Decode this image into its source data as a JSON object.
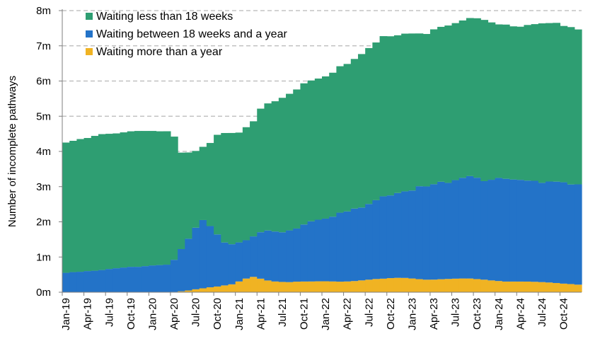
{
  "chart_data": {
    "type": "area",
    "stacked": true,
    "title": "",
    "xlabel": "",
    "ylabel": "Number of incomplete pathways",
    "ylim": [
      0,
      8000000
    ],
    "y_ticks": [
      {
        "value": 0,
        "label": "0m"
      },
      {
        "value": 1000000,
        "label": "1m"
      },
      {
        "value": 2000000,
        "label": "2m"
      },
      {
        "value": 3000000,
        "label": "3m"
      },
      {
        "value": 4000000,
        "label": "4m"
      },
      {
        "value": 5000000,
        "label": "5m"
      },
      {
        "value": 6000000,
        "label": "6m"
      },
      {
        "value": 7000000,
        "label": "7m"
      },
      {
        "value": 8000000,
        "label": "8m"
      }
    ],
    "grid": "horizontal dashed",
    "legend_position": "top-left",
    "x_tick_labels": [
      "Jan-19",
      "Apr-19",
      "Jul-19",
      "Oct-19",
      "Jan-20",
      "Apr-20",
      "Jul-20",
      "Oct-20",
      "Jan-21",
      "Apr-21",
      "Jul-21",
      "Oct-21",
      "Jan-22",
      "Apr-22",
      "Jul-22",
      "Oct-22",
      "Jan-23",
      "Apr-23",
      "Jul-23",
      "Oct-23",
      "Jan-24",
      "Apr-24",
      "Jul-24",
      "Oct-24"
    ],
    "x": [
      "Jan-19",
      "Feb-19",
      "Mar-19",
      "Apr-19",
      "May-19",
      "Jun-19",
      "Jul-19",
      "Aug-19",
      "Sep-19",
      "Oct-19",
      "Nov-19",
      "Dec-19",
      "Jan-20",
      "Feb-20",
      "Mar-20",
      "Apr-20",
      "May-20",
      "Jun-20",
      "Jul-20",
      "Aug-20",
      "Sep-20",
      "Oct-20",
      "Nov-20",
      "Dec-20",
      "Jan-21",
      "Feb-21",
      "Mar-21",
      "Apr-21",
      "May-21",
      "Jun-21",
      "Jul-21",
      "Aug-21",
      "Sep-21",
      "Oct-21",
      "Nov-21",
      "Dec-21",
      "Jan-22",
      "Feb-22",
      "Mar-22",
      "Apr-22",
      "May-22",
      "Jun-22",
      "Jul-22",
      "Aug-22",
      "Sep-22",
      "Oct-22",
      "Nov-22",
      "Dec-22",
      "Jan-23",
      "Feb-23",
      "Mar-23",
      "Apr-23",
      "May-23",
      "Jun-23",
      "Jul-23",
      "Aug-23",
      "Sep-23",
      "Oct-23",
      "Nov-23",
      "Dec-23",
      "Jan-24",
      "Feb-24",
      "Mar-24",
      "Apr-24",
      "May-24",
      "Jun-24",
      "Jul-24",
      "Aug-24",
      "Sep-24",
      "Oct-24",
      "Nov-24",
      "Dec-24"
    ],
    "totals_note_units": "pathways",
    "series": [
      {
        "name": "Waiting more than a year",
        "color": "#F0B323",
        "values": [
          1600,
          1600,
          1500,
          1500,
          1400,
          1400,
          1400,
          1500,
          1500,
          1500,
          1500,
          1600,
          1600,
          1600,
          3000,
          11000,
          26000,
          50000,
          83000,
          111000,
          140000,
          162000,
          193000,
          224000,
          305000,
          388000,
          436000,
          385000,
          334000,
          305000,
          293000,
          287000,
          300000,
          304000,
          305000,
          310000,
          311000,
          306000,
          300000,
          305000,
          317000,
          336000,
          356000,
          375000,
          385000,
          401000,
          409000,
          406000,
          390000,
          371000,
          356000,
          358000,
          369000,
          377000,
          385000,
          390000,
          389000,
          373000,
          356000,
          335000,
          318000,
          303000,
          303000,
          303000,
          302000,
          296000,
          288000,
          276000,
          262000,
          244000,
          232000,
          215000
        ]
      },
      {
        "name": "Waiting between 18 weeks and a year",
        "color": "#2373C8",
        "values": [
          550000,
          570000,
          580000,
          600000,
          610000,
          630000,
          660000,
          680000,
          700000,
          720000,
          720000,
          740000,
          760000,
          770000,
          780000,
          910000,
          1200000,
          1470000,
          1750000,
          1940000,
          1740000,
          1480000,
          1220000,
          1140000,
          1110000,
          1090000,
          1150000,
          1320000,
          1420000,
          1420000,
          1410000,
          1470000,
          1510000,
          1620000,
          1710000,
          1750000,
          1780000,
          1840000,
          1960000,
          1990000,
          2060000,
          2070000,
          2150000,
          2240000,
          2340000,
          2350000,
          2410000,
          2460000,
          2500000,
          2640000,
          2650000,
          2710000,
          2770000,
          2730000,
          2800000,
          2860000,
          2910000,
          2880000,
          2800000,
          2860000,
          2930000,
          2920000,
          2900000,
          2890000,
          2870000,
          2870000,
          2820000,
          2870000,
          2880000,
          2880000,
          2830000,
          2850000
        ]
      },
      {
        "name": "Waiting less than 18 weeks",
        "color": "#2E9E72",
        "values": [
          3700000,
          3730000,
          3770000,
          3780000,
          3830000,
          3860000,
          3840000,
          3830000,
          3840000,
          3850000,
          3860000,
          3840000,
          3820000,
          3800000,
          3790000,
          3500000,
          2740000,
          2450000,
          2180000,
          2080000,
          2360000,
          2830000,
          3110000,
          3160000,
          3120000,
          3210000,
          3270000,
          3510000,
          3610000,
          3700000,
          3820000,
          3880000,
          3950000,
          4010000,
          4000000,
          4010000,
          4040000,
          4090000,
          4160000,
          4190000,
          4250000,
          4360000,
          4430000,
          4480000,
          4550000,
          4520000,
          4480000,
          4480000,
          4460000,
          4340000,
          4330000,
          4400000,
          4400000,
          4470000,
          4460000,
          4470000,
          4490000,
          4530000,
          4580000,
          4470000,
          4360000,
          4380000,
          4350000,
          4350000,
          4420000,
          4450000,
          4530000,
          4500000,
          4510000,
          4440000,
          4470000,
          4400000
        ]
      }
    ]
  }
}
